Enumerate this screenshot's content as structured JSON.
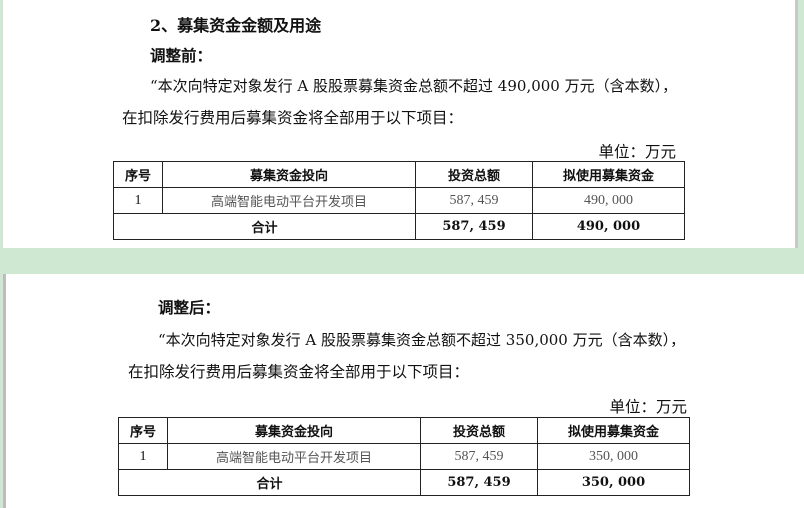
{
  "section_title": "2、募集资金金额及用途",
  "before": {
    "label": "调整前：",
    "para_line1": "“本次向特定对象发行 A 股股票募集资金总额不超过 490,000 万元（含本数），",
    "para_line2": "在扣除发行费用后募集资金将全部用于以下项目：",
    "unit": "单位：万元",
    "table": {
      "headers": [
        "序号",
        "募集资金投向",
        "投资总额",
        "拟使用募集资金"
      ],
      "rows": [
        [
          "1",
          "高端智能电动平台开发项目",
          "587, 459",
          "490, 000"
        ]
      ],
      "total": {
        "label": "合计",
        "investment": "587, 459",
        "proceeds": "490, 000"
      }
    }
  },
  "after": {
    "label": "调整后：",
    "para_line1": "“本次向特定对象发行 A 股股票募集资金总额不超过 350,000 万元（含本数），",
    "para_line2": "在扣除发行费用后募集资金将全部用于以下项目：",
    "unit": "单位：万元",
    "table": {
      "headers": [
        "序号",
        "募集资金投向",
        "投资总额",
        "拟使用募集资金"
      ],
      "rows": [
        [
          "1",
          "高端智能电动平台开发项目",
          "587, 459",
          "350, 000"
        ]
      ],
      "total": {
        "label": "合计",
        "investment": "587, 459",
        "proceeds": "350, 000"
      }
    }
  }
}
